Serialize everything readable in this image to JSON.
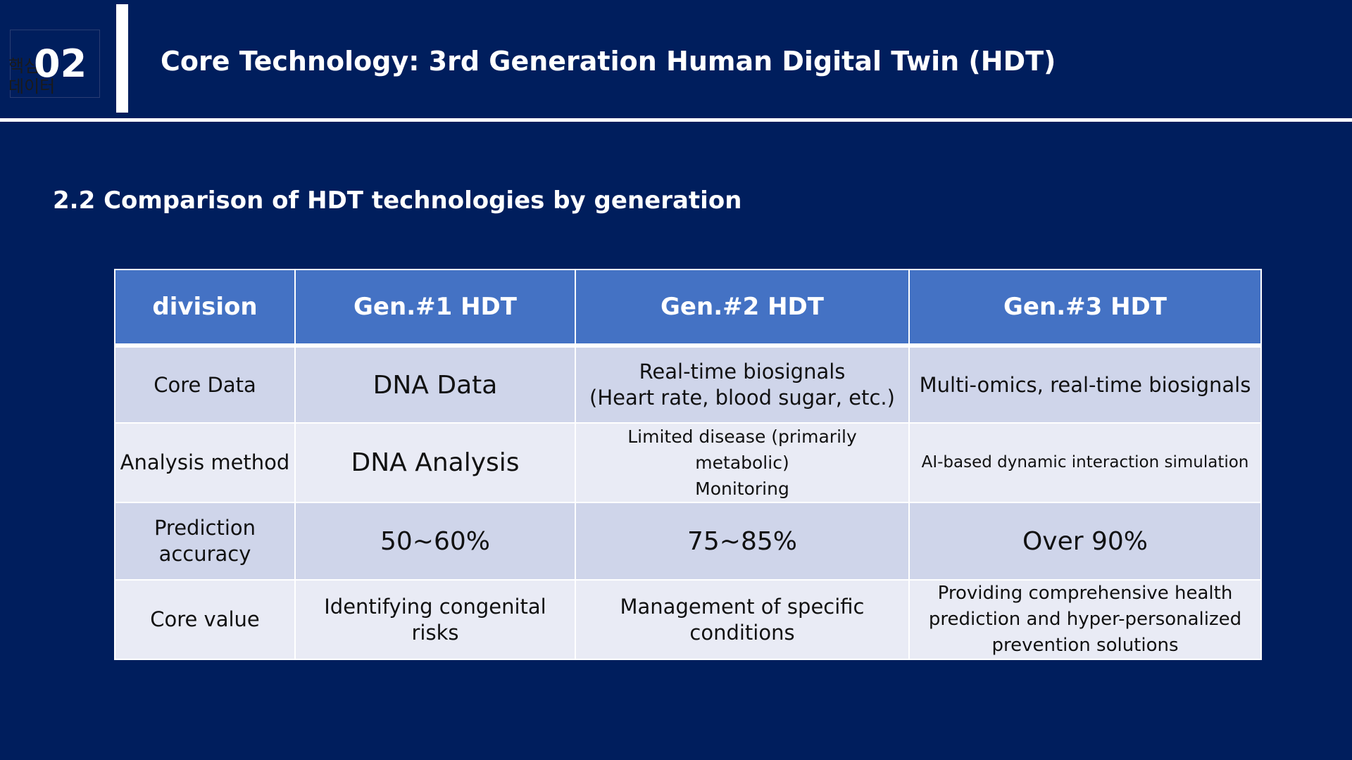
{
  "section": {
    "korean_label": "핵심\n데이터",
    "number": "02"
  },
  "header": {
    "title": "Core Technology: 3rd Generation Human Digital Twin (HDT)"
  },
  "subtitle": "2.2 Comparison of HDT technologies by generation",
  "table": {
    "columns": [
      "division",
      "Gen.#1 HDT",
      "Gen.#2 HDT",
      "Gen.#3 HDT"
    ],
    "rows": [
      [
        "Core Data",
        "DNA Data",
        "Real-time biosignals\n(Heart rate, blood sugar, etc.)",
        "Multi-omics, real-time biosignals"
      ],
      [
        "Analysis method",
        "DNA Analysis",
        "Limited disease (primarily metabolic)\nMonitoring",
        "AI-based dynamic interaction simulation"
      ],
      [
        "Prediction\naccuracy",
        "50~60%",
        "75~85%",
        "Over 90%"
      ],
      [
        "Core value",
        "Identifying congenital risks",
        "Management of specific conditions",
        "Providing comprehensive health\nprediction and hyper-personalized\nprevention solutions"
      ]
    ]
  },
  "colors": {
    "background": "#001e5d",
    "header_fill": "#4472c4",
    "row_odd": "#cfd5ea",
    "row_even": "#e9ebf5"
  }
}
